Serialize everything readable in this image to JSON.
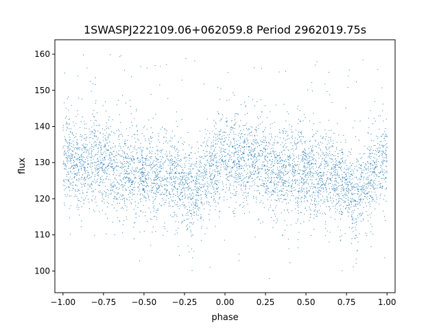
{
  "chart_data": {
    "type": "scatter",
    "title": "1SWASPJ222109.06+062059.8 Period 2962019.75s",
    "xlabel": "phase",
    "ylabel": "flux",
    "xlim": [
      -1.05,
      1.05
    ],
    "ylim": [
      94,
      164
    ],
    "xticks": [
      -1.0,
      -0.75,
      -0.5,
      -0.25,
      0.0,
      0.25,
      0.5,
      0.75,
      1.0
    ],
    "xtick_labels": [
      "−1.00",
      "−0.75",
      "−0.50",
      "−0.25",
      "0.00",
      "0.25",
      "0.50",
      "0.75",
      "1.00"
    ],
    "yticks": [
      100,
      110,
      120,
      130,
      140,
      150,
      160
    ],
    "ytick_labels": [
      "100",
      "110",
      "120",
      "130",
      "140",
      "150",
      "160"
    ],
    "grid": false,
    "legend": "none",
    "marker_color": "#1f77b4",
    "series": [
      {
        "description_of_trend": "folded light curve repeated over two cycles",
        "phase_profile": {
          "phase": [
            0.0,
            0.05,
            0.1,
            0.15,
            0.2,
            0.25,
            0.3,
            0.35,
            0.4,
            0.45,
            0.5,
            0.55,
            0.6,
            0.65,
            0.7,
            0.75,
            0.8,
            0.85,
            0.9,
            0.95,
            1.0
          ],
          "mean_flux": [
            131,
            131,
            130,
            130,
            131,
            130,
            128,
            127,
            128,
            128,
            127,
            126,
            126,
            127,
            126,
            123,
            122,
            124,
            127,
            130,
            131
          ],
          "scatter": 5.5,
          "range_x": [
            -1.0,
            1.0
          ],
          "outlier_range_y": [
            97,
            161
          ]
        }
      }
    ]
  }
}
